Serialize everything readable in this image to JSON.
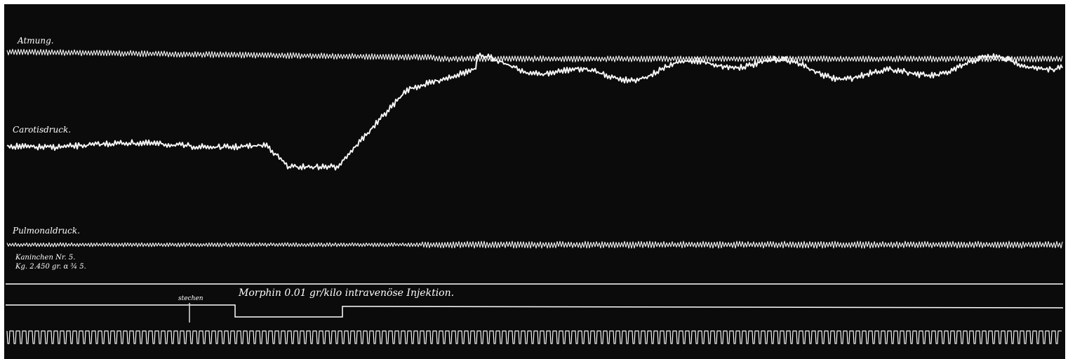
{
  "labels": {
    "respiration": "Atmung.",
    "carotid": "Carotisdruck.",
    "pulmonary": "Pulmonaldruck.",
    "animal": "Kaninchen Nr. 5.",
    "weight": "Kg. 2.450 gr. α ¾ 5.",
    "injection": "Morphin 0.01 gr/kilo intravenöse Injektion.",
    "marker": "stechen"
  }
}
